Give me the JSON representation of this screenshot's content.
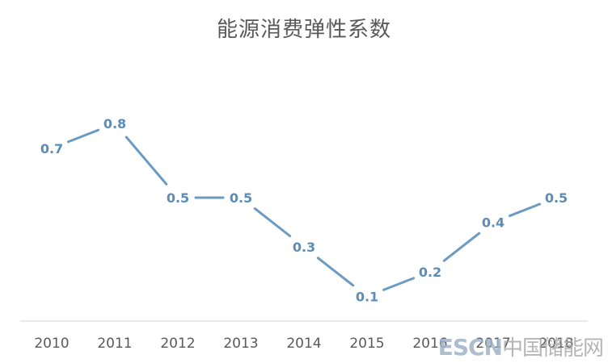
{
  "chart_data": {
    "type": "line",
    "title": "能源消费弹性系数",
    "xlabel": "",
    "ylabel": "",
    "categories": [
      "2010",
      "2011",
      "2012",
      "2013",
      "2014",
      "2015",
      "2016",
      "2017",
      "2018"
    ],
    "series": [
      {
        "values": [
          0.7,
          0.8,
          0.5,
          0.5,
          0.3,
          0.1,
          0.2,
          0.4,
          0.5
        ]
      }
    ],
    "data_labels": [
      "0.7",
      "0.8",
      "0.5",
      "0.5",
      "0.3",
      "0.1",
      "0.2",
      "0.4",
      "0.5"
    ],
    "ylim": [
      0,
      1
    ],
    "grid": false,
    "legend": "none",
    "line_color": "#6b9bc3",
    "label_color": "#5b8db8"
  },
  "watermark": {
    "latin": "ESCN",
    "cn": "中国储能网"
  }
}
